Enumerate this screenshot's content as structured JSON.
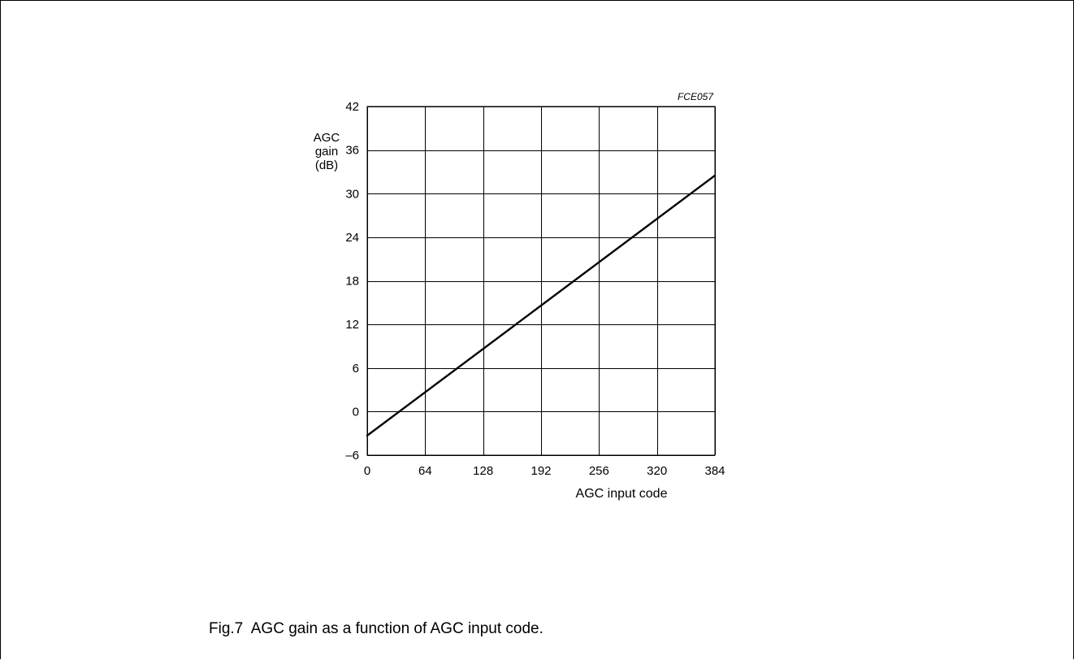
{
  "figure": {
    "caption": "Fig.7  AGC gain as a function of AGC input code."
  },
  "chart_data": {
    "type": "line",
    "code_label": "FCE057",
    "xlabel": "AGC input code",
    "ylabel_lines": [
      "AGC",
      "gain",
      "(dB)"
    ],
    "xlim": [
      0,
      384
    ],
    "ylim": [
      -6,
      42
    ],
    "xticks": [
      0,
      64,
      128,
      192,
      256,
      320,
      384
    ],
    "yticks": [
      -6,
      0,
      6,
      12,
      18,
      24,
      30,
      36,
      42
    ],
    "ytick_labels": [
      "–6",
      "0",
      "6",
      "12",
      "18",
      "24",
      "30",
      "36",
      "42"
    ],
    "grid": true,
    "line_color": "#000000",
    "series": [
      {
        "x": [
          0,
          384
        ],
        "y": [
          -3.3,
          32.5
        ]
      }
    ]
  }
}
